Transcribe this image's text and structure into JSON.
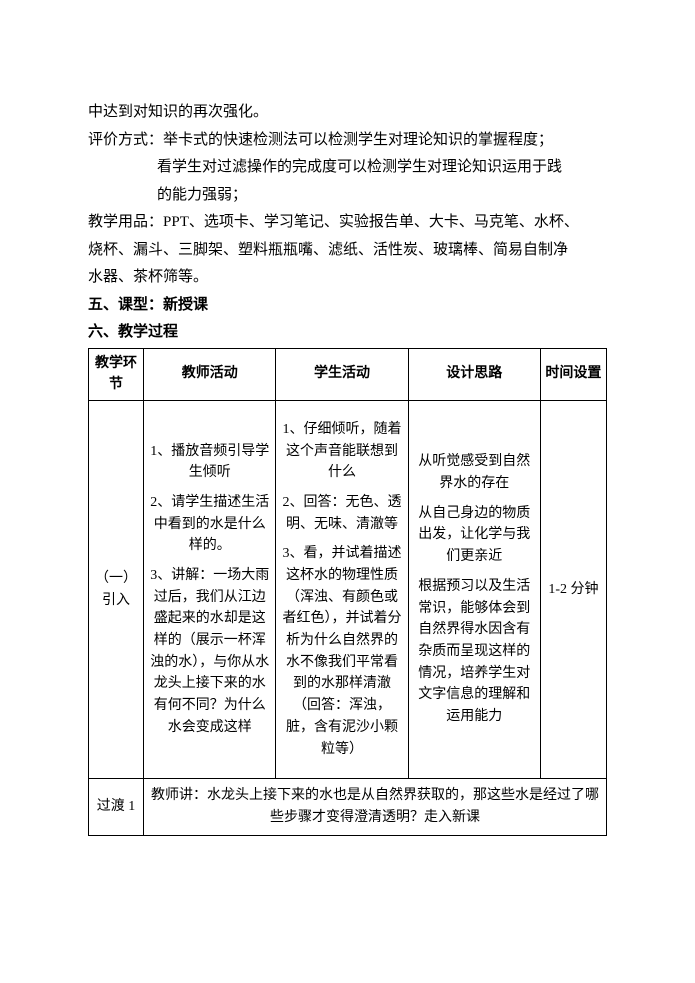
{
  "intro": {
    "line1": "中达到对知识的再次强化。",
    "eval_label": "评价方式：",
    "eval_l1": "举卡式的快速检测法可以检测学生对理论知识的掌握程度；",
    "eval_l2": "看学生对过滤操作的完成度可以检测学生对理论知识运用于践",
    "eval_l3": "的能力强弱；",
    "supply_label": "教学用品：",
    "supply_l1": "PPT、选项卡、学习笔记、实验报告单、大卡、马克笔、水杯、",
    "supply_l2": "烧杯、漏斗、三脚架、塑料瓶瓶嘴、滤纸、活性炭、玻璃棒、简易自制净",
    "supply_l3": "水器、茶杯筛等。",
    "sec5": "五、课型：新授课",
    "sec6": "六、教学过程"
  },
  "table": {
    "headers": [
      "教学环节",
      "教师活动",
      "学生活动",
      "设计思路",
      "时间设置"
    ],
    "row1": {
      "stage": "（一）引入",
      "teacher": {
        "p1": "1、播放音频引导学生倾听",
        "p2": "2、请学生描述生活中看到的水是什么样的。",
        "p3": "3、讲解：一场大雨过后，我们从江边盛起来的水却是这样的（展示一杯浑浊的水），与你从水龙头上接下来的水有何不同？为什么水会变成这样"
      },
      "student": {
        "p1": "1、仔细倾听，随着这个声音能联想到什么",
        "p2": "2、回答：无色、透明、无味、清澈等",
        "p3": "3、看，并试着描述这杯水的物理性质（浑浊、有颜色或者红色），并试着分析为什么自然界的水不像我们平常看到的水那样清澈（回答：浑浊，脏，含有泥沙小颗粒等）"
      },
      "rationale": {
        "p1": "从听觉感受到自然界水的存在",
        "p2": "从自己身边的物质出发，让化学与我们更亲近",
        "p3": "根据预习以及生活常识，能够体会到自然界得水因含有杂质而呈现这样的情况，培养学生对文字信息的理解和运用能力"
      },
      "time": "1-2 分钟"
    },
    "transition": {
      "label": "过渡 1",
      "text": "教师讲：水龙头上接下来的水也是从自然界获取的，那这些水是经过了哪些步骤才变得澄清透明？走入新课"
    }
  }
}
